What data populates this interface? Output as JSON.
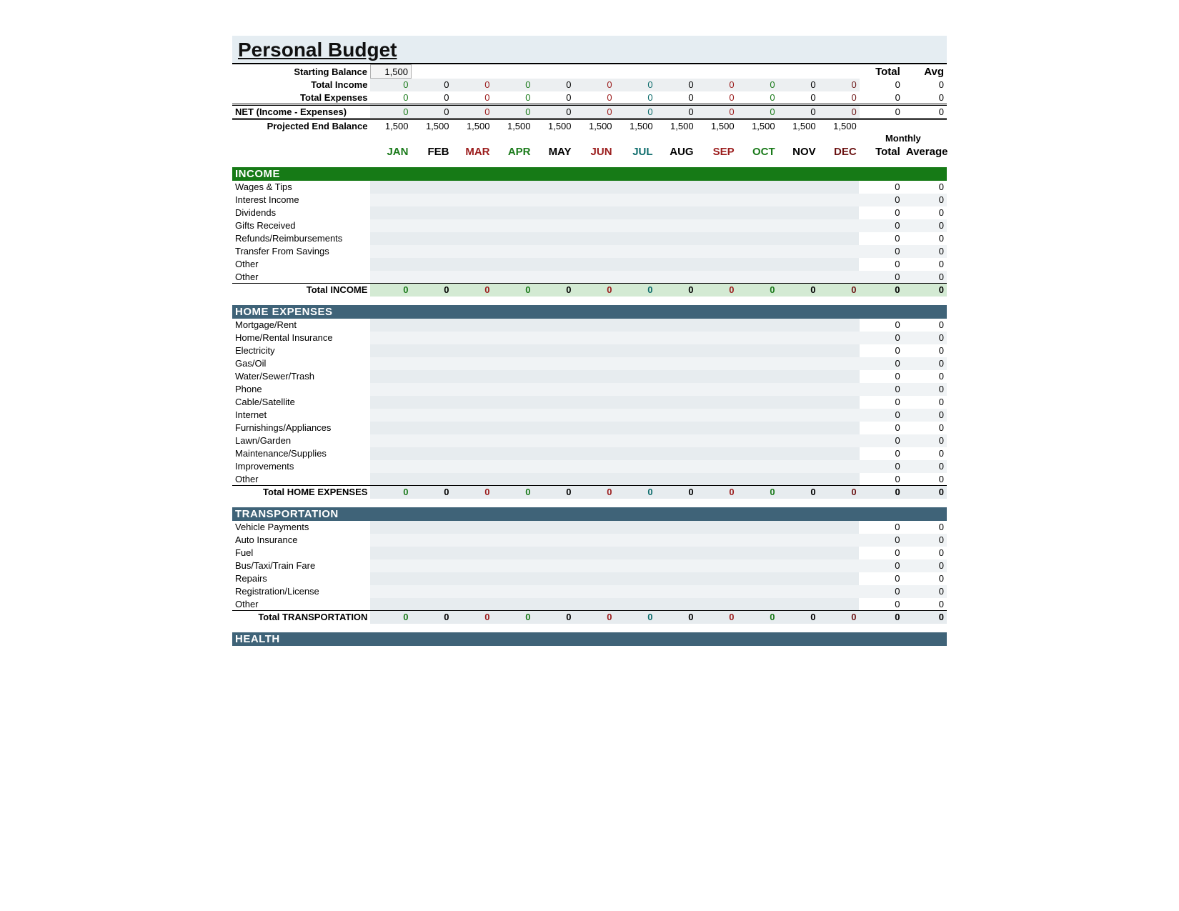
{
  "title": "Personal Budget",
  "colors": {
    "title_bg": "#e5edf2",
    "income_bar": "#167a16",
    "expense_bar": "#3f6378",
    "income_total_bg": "#d3ead3",
    "data_cell_bg": "#e7ecef",
    "alt_cell_bg": "#f0f3f5"
  },
  "summary": {
    "starting_balance_label": "Starting Balance",
    "starting_balance_value": "1,500",
    "total_income_label": "Total Income",
    "total_expenses_label": "Total Expenses",
    "net_label": "NET (Income - Expenses)",
    "projected_label": "Projected End Balance",
    "total_header": "Total",
    "avg_header": "Avg",
    "monthly_label": "Monthly",
    "total_label2": "Total",
    "average_label": "Average",
    "zero": "0",
    "proj_value": "1,500"
  },
  "months": [
    {
      "abbr": "JAN",
      "color": "#1a7a1a"
    },
    {
      "abbr": "FEB",
      "color": "#000000"
    },
    {
      "abbr": "MAR",
      "color": "#9b1c1c"
    },
    {
      "abbr": "APR",
      "color": "#1a7a1a"
    },
    {
      "abbr": "MAY",
      "color": "#000000"
    },
    {
      "abbr": "JUN",
      "color": "#9b1c1c"
    },
    {
      "abbr": "JUL",
      "color": "#0f6d6d"
    },
    {
      "abbr": "AUG",
      "color": "#000000"
    },
    {
      "abbr": "SEP",
      "color": "#9b1c1c"
    },
    {
      "abbr": "OCT",
      "color": "#1a7a1a"
    },
    {
      "abbr": "NOV",
      "color": "#000000"
    },
    {
      "abbr": "DEC",
      "color": "#6b1313"
    }
  ],
  "sections": [
    {
      "id": "income",
      "title": "INCOME",
      "style": "income",
      "total_label": "Total INCOME",
      "total_style": "income-total",
      "items": [
        "Wages & Tips",
        "Interest Income",
        "Dividends",
        "Gifts Received",
        "Refunds/Reimbursements",
        "Transfer From Savings",
        "Other",
        "Other"
      ]
    },
    {
      "id": "home",
      "title": "HOME EXPENSES",
      "style": "expense",
      "total_label": "Total HOME EXPENSES",
      "total_style": "",
      "items": [
        "Mortgage/Rent",
        "Home/Rental Insurance",
        "Electricity",
        "Gas/Oil",
        "Water/Sewer/Trash",
        "Phone",
        "Cable/Satellite",
        "Internet",
        "Furnishings/Appliances",
        "Lawn/Garden",
        "Maintenance/Supplies",
        "Improvements",
        "Other"
      ]
    },
    {
      "id": "transport",
      "title": "TRANSPORTATION",
      "style": "expense",
      "total_label": "Total TRANSPORTATION",
      "total_style": "",
      "items": [
        "Vehicle Payments",
        "Auto Insurance",
        "Fuel",
        "Bus/Taxi/Train Fare",
        "Repairs",
        "Registration/License",
        "Other"
      ]
    },
    {
      "id": "health",
      "title": "HEALTH",
      "style": "expense",
      "total_label": "",
      "total_style": "",
      "items": []
    }
  ],
  "month_value_colors": [
    "#1a7a1a",
    "#000000",
    "#9b1c1c",
    "#1a7a1a",
    "#000000",
    "#9b1c1c",
    "#0f6d6d",
    "#000000",
    "#9b1c1c",
    "#1a7a1a",
    "#000000",
    "#6b1313"
  ]
}
